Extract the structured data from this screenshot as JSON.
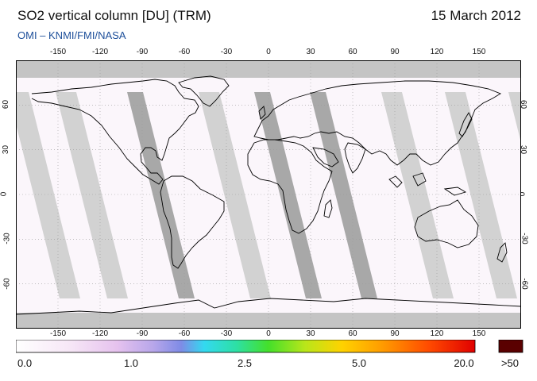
{
  "header": {
    "title": "SO2 vertical column [DU] (TRM)",
    "date": "15 March 2012",
    "subtitle": "OMI  –  KNMI/FMI/NASA"
  },
  "map": {
    "lon_ticks": [
      "-150",
      "-120",
      "-90",
      "-60",
      "-30",
      "0",
      "30",
      "60",
      "90",
      "120",
      "150"
    ],
    "lat_ticks": [
      "60",
      "30",
      "0",
      "-30",
      "-60"
    ],
    "colors": {
      "orbit_light": "#d2d2d2",
      "orbit_dark": "#a8a8a8",
      "no_data": "#c0c0c0",
      "coast": "#000000",
      "grid": "#9a9a9a"
    }
  },
  "colorbar": {
    "labels": [
      "0.0",
      "1.0",
      "2.5",
      "5.0",
      "20.0",
      ">50"
    ],
    "overflow_color": "#5a0000"
  }
}
